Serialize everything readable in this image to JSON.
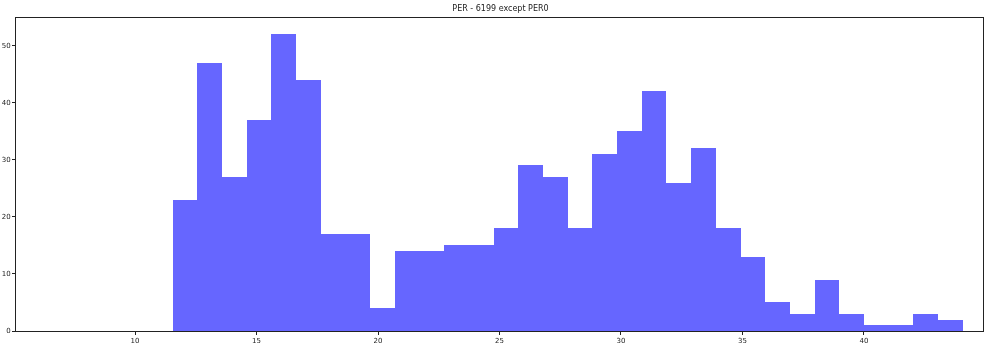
{
  "chart_data": {
    "type": "histogram",
    "title": "PER - 6199 except PER0",
    "bins": [
      11.55,
      12.57,
      13.58,
      14.6,
      15.61,
      16.63,
      17.65,
      18.66,
      19.68,
      20.69,
      21.71,
      22.73,
      23.74,
      24.76,
      25.77,
      26.79,
      27.81,
      28.82,
      29.84,
      30.85,
      31.87,
      32.89,
      33.9,
      34.92,
      35.93,
      36.95,
      37.97,
      38.98,
      40.0,
      41.01,
      42.03,
      43.05,
      44.06
    ],
    "values": [
      23,
      47,
      27,
      37,
      52,
      44,
      17,
      17,
      4,
      14,
      14,
      15,
      15,
      18,
      29,
      27,
      18,
      31,
      35,
      42,
      26,
      32,
      18,
      13,
      5,
      3,
      9,
      3,
      1,
      1,
      3,
      2
    ],
    "color": "#6666ff",
    "xlim": [
      5.1,
      44.9
    ],
    "xticks": [
      10,
      15,
      20,
      25,
      30,
      35,
      40
    ],
    "ylim": [
      0,
      54.8
    ],
    "yticks": [
      0,
      10,
      20,
      30,
      40,
      50
    ],
    "grid": false
  }
}
